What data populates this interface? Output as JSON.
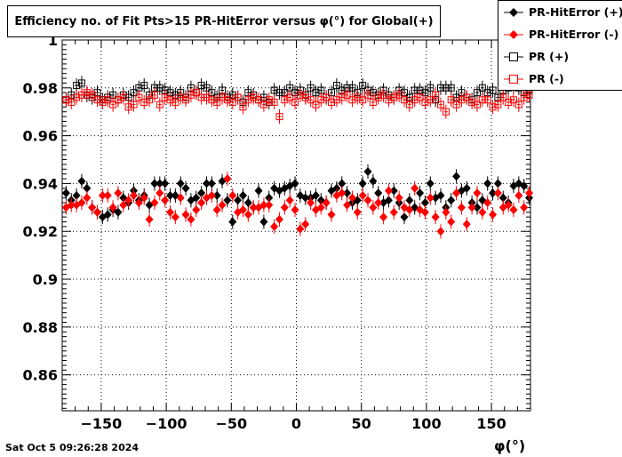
{
  "title": "Efficiency no. of Fit Pts>15 PR-HitError versus φ(°) for Global(+)",
  "footer": {
    "timestamp": "Sat Oct  5 09:26:28 2024"
  },
  "legend": [
    {
      "label": "PR-HitError (+)",
      "marker": "filled-diamond",
      "color": "#000000"
    },
    {
      "label": "PR-HitError (-)",
      "marker": "filled-diamond",
      "color": "#ff0000"
    },
    {
      "label": "PR (+)",
      "marker": "open-square",
      "color": "#000000"
    },
    {
      "label": "PR (-)",
      "marker": "open-square",
      "color": "#ff0000"
    }
  ],
  "chart_data": {
    "type": "scatter",
    "title": "Efficiency no. of Fit Pts>15 PR-HitError versus φ(°) for Global(+)",
    "xlabel": "φ(°)",
    "ylabel": "",
    "xlim": [
      -180,
      180
    ],
    "ylim": [
      0.845,
      1.0
    ],
    "grid": true,
    "legend_position": "top-right",
    "x_ticks": [
      -150,
      -100,
      -50,
      0,
      50,
      100,
      150
    ],
    "y_ticks": [
      0.86,
      0.88,
      0.9,
      0.92,
      0.94,
      0.96,
      0.98,
      1
    ],
    "x_tick_labels": [
      "−150",
      "−100",
      "−50",
      "0",
      "50",
      "100",
      "150"
    ],
    "y_tick_labels": [
      "0.86",
      "0.88",
      "0.9",
      "0.92",
      "0.94",
      "0.96",
      "0.98",
      "1"
    ],
    "x": [
      -177,
      -173,
      -169,
      -165,
      -161,
      -157,
      -153,
      -149,
      -145,
      -141,
      -137,
      -133,
      -129,
      -125,
      -121,
      -117,
      -113,
      -109,
      -105,
      -101,
      -97,
      -93,
      -89,
      -85,
      -81,
      -77,
      -73,
      -69,
      -65,
      -61,
      -57,
      -53,
      -49,
      -45,
      -41,
      -37,
      -33,
      -29,
      -25,
      -21,
      -17,
      -13,
      -9,
      -5,
      -1,
      3,
      7,
      11,
      15,
      19,
      23,
      27,
      31,
      35,
      39,
      43,
      47,
      51,
      55,
      59,
      63,
      67,
      71,
      75,
      79,
      83,
      87,
      91,
      95,
      99,
      103,
      107,
      111,
      115,
      119,
      123,
      127,
      131,
      135,
      139,
      143,
      147,
      151,
      155,
      159,
      163,
      167,
      171,
      175,
      179
    ],
    "series": [
      {
        "name": "PR-HitError (+)",
        "color": "#000000",
        "marker": "filled-diamond",
        "values": [
          0.936,
          0.933,
          0.935,
          0.941,
          0.938,
          0.93,
          0.928,
          0.926,
          0.927,
          0.929,
          0.928,
          0.934,
          0.932,
          0.937,
          0.933,
          0.935,
          0.931,
          0.94,
          0.94,
          0.94,
          0.935,
          0.935,
          0.94,
          0.938,
          0.933,
          0.934,
          0.936,
          0.94,
          0.94,
          0.935,
          0.941,
          0.933,
          0.924,
          0.933,
          0.935,
          0.932,
          0.93,
          0.937,
          0.924,
          0.934,
          0.938,
          0.937,
          0.938,
          0.939,
          0.94,
          0.935,
          0.934,
          0.934,
          0.935,
          0.933,
          0.932,
          0.937,
          0.938,
          0.94,
          0.936,
          0.932,
          0.933,
          0.94,
          0.945,
          0.941,
          0.936,
          0.932,
          0.933,
          0.937,
          0.932,
          0.926,
          0.933,
          0.93,
          0.936,
          0.932,
          0.94,
          0.934,
          0.935,
          0.93,
          0.933,
          0.943,
          0.937,
          0.938,
          0.932,
          0.93,
          0.933,
          0.94,
          0.936,
          0.94,
          0.934,
          0.932,
          0.939,
          0.94,
          0.939,
          0.934
        ]
      },
      {
        "name": "PR-HitError (-)",
        "color": "#ff0000",
        "marker": "filled-diamond",
        "values": [
          0.93,
          0.931,
          0.931,
          0.932,
          0.934,
          0.93,
          0.928,
          0.935,
          0.935,
          0.93,
          0.936,
          0.931,
          0.933,
          0.935,
          0.932,
          0.934,
          0.925,
          0.932,
          0.936,
          0.933,
          0.928,
          0.926,
          0.934,
          0.927,
          0.925,
          0.929,
          0.932,
          0.934,
          0.935,
          0.929,
          0.931,
          0.942,
          0.935,
          0.928,
          0.929,
          0.927,
          0.93,
          0.93,
          0.931,
          0.931,
          0.922,
          0.925,
          0.93,
          0.933,
          0.929,
          0.921,
          0.923,
          0.932,
          0.929,
          0.93,
          0.932,
          0.927,
          0.935,
          0.936,
          0.931,
          0.934,
          0.928,
          0.935,
          0.933,
          0.93,
          0.932,
          0.926,
          0.937,
          0.928,
          0.934,
          0.93,
          0.929,
          0.938,
          0.929,
          0.928,
          0.934,
          0.926,
          0.92,
          0.928,
          0.924,
          0.936,
          0.93,
          0.923,
          0.93,
          0.936,
          0.928,
          0.932,
          0.927,
          0.936,
          0.93,
          0.931,
          0.929,
          0.935,
          0.93,
          0.936
        ]
      },
      {
        "name": "PR (+)",
        "color": "#000000",
        "marker": "open-square",
        "values": [
          0.975,
          0.977,
          0.981,
          0.982,
          0.977,
          0.976,
          0.978,
          0.975,
          0.976,
          0.977,
          0.975,
          0.977,
          0.976,
          0.978,
          0.98,
          0.981,
          0.977,
          0.98,
          0.98,
          0.979,
          0.978,
          0.977,
          0.978,
          0.976,
          0.98,
          0.978,
          0.981,
          0.98,
          0.978,
          0.976,
          0.979,
          0.976,
          0.977,
          0.976,
          0.974,
          0.978,
          0.977,
          0.975,
          0.976,
          0.974,
          0.979,
          0.978,
          0.978,
          0.98,
          0.978,
          0.979,
          0.977,
          0.98,
          0.978,
          0.979,
          0.976,
          0.978,
          0.981,
          0.979,
          0.98,
          0.98,
          0.978,
          0.981,
          0.979,
          0.978,
          0.977,
          0.979,
          0.977,
          0.976,
          0.979,
          0.978,
          0.976,
          0.979,
          0.979,
          0.978,
          0.98,
          0.975,
          0.98,
          0.98,
          0.98,
          0.976,
          0.978,
          0.976,
          0.975,
          0.978,
          0.98,
          0.978,
          0.979,
          0.976,
          0.979,
          0.98,
          0.981,
          0.98,
          0.978,
          0.979
        ]
      },
      {
        "name": "PR (-)",
        "color": "#ff0000",
        "marker": "open-square",
        "values": [
          0.975,
          0.974,
          0.976,
          0.977,
          0.978,
          0.977,
          0.975,
          0.974,
          0.975,
          0.973,
          0.975,
          0.976,
          0.972,
          0.973,
          0.976,
          0.974,
          0.975,
          0.977,
          0.973,
          0.976,
          0.975,
          0.974,
          0.976,
          0.975,
          0.977,
          0.978,
          0.976,
          0.976,
          0.975,
          0.974,
          0.976,
          0.975,
          0.974,
          0.976,
          0.972,
          0.975,
          0.976,
          0.975,
          0.973,
          0.975,
          0.974,
          0.968,
          0.975,
          0.976,
          0.974,
          0.977,
          0.976,
          0.975,
          0.973,
          0.975,
          0.976,
          0.974,
          0.975,
          0.976,
          0.977,
          0.975,
          0.976,
          0.975,
          0.977,
          0.974,
          0.976,
          0.977,
          0.975,
          0.976,
          0.977,
          0.975,
          0.973,
          0.975,
          0.976,
          0.974,
          0.975,
          0.977,
          0.973,
          0.97,
          0.975,
          0.973,
          0.975,
          0.976,
          0.974,
          0.973,
          0.975,
          0.975,
          0.972,
          0.973,
          0.976,
          0.974,
          0.975,
          0.973,
          0.976,
          0.977
        ]
      }
    ]
  }
}
